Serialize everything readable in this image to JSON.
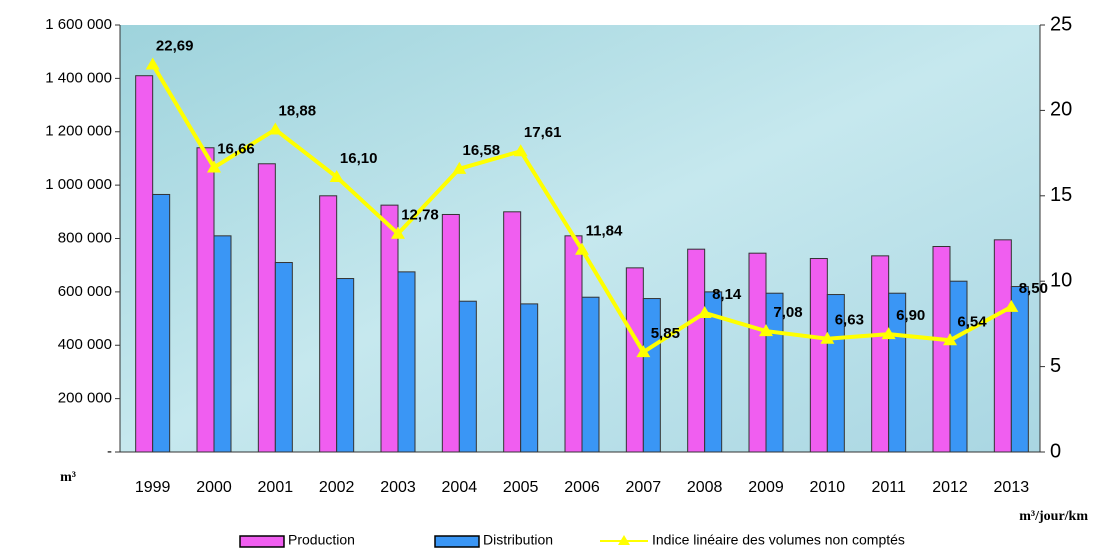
{
  "chart_data": {
    "type": "bar",
    "categories": [
      "1999",
      "2000",
      "2001",
      "2002",
      "2003",
      "2004",
      "2005",
      "2006",
      "2007",
      "2008",
      "2009",
      "2010",
      "2011",
      "2012",
      "2013"
    ],
    "series": [
      {
        "name": "Production",
        "type": "bar",
        "color": "#f05ef0",
        "values": [
          1410000,
          1140000,
          1080000,
          960000,
          925000,
          890000,
          900000,
          810000,
          690000,
          760000,
          745000,
          725000,
          735000,
          770000,
          795000
        ]
      },
      {
        "name": "Distribution",
        "type": "bar",
        "color": "#3a96f5",
        "values": [
          965000,
          810000,
          710000,
          650000,
          675000,
          565000,
          555000,
          580000,
          575000,
          600000,
          595000,
          590000,
          595000,
          640000,
          620000
        ]
      },
      {
        "name": "Indice linéaire des volumes non comptés",
        "type": "line",
        "axis": "y2",
        "color": "#ffff00",
        "values": [
          22.69,
          16.66,
          18.88,
          16.1,
          12.78,
          16.58,
          17.61,
          11.84,
          5.85,
          8.14,
          7.08,
          6.63,
          6.9,
          6.54,
          8.5
        ],
        "value_labels": [
          "22,69",
          "16,66",
          "18,88",
          "16,10",
          "12,78",
          "16,58",
          "17,61",
          "11,84",
          "5,85",
          "8,14",
          "7,08",
          "6,63",
          "6,90",
          "6,54",
          "8,50"
        ]
      }
    ],
    "ylim": [
      0,
      1600000
    ],
    "yticks": [
      {
        "value": 0,
        "label": "-"
      },
      {
        "value": 200000,
        "label": "200 000"
      },
      {
        "value": 400000,
        "label": "400 000"
      },
      {
        "value": 600000,
        "label": "600 000"
      },
      {
        "value": 800000,
        "label": "800 000"
      },
      {
        "value": 1000000,
        "label": "1 000 000"
      },
      {
        "value": 1200000,
        "label": "1 200 000"
      },
      {
        "value": 1400000,
        "label": "1 400 000"
      },
      {
        "value": 1600000,
        "label": "1 600 000"
      }
    ],
    "y2lim": [
      0,
      25
    ],
    "y2ticks": [
      0,
      5,
      10,
      15,
      20,
      25
    ],
    "ylabel": "m³",
    "y2label": "m³/jour/km",
    "grid": false,
    "legend": "bottom"
  }
}
